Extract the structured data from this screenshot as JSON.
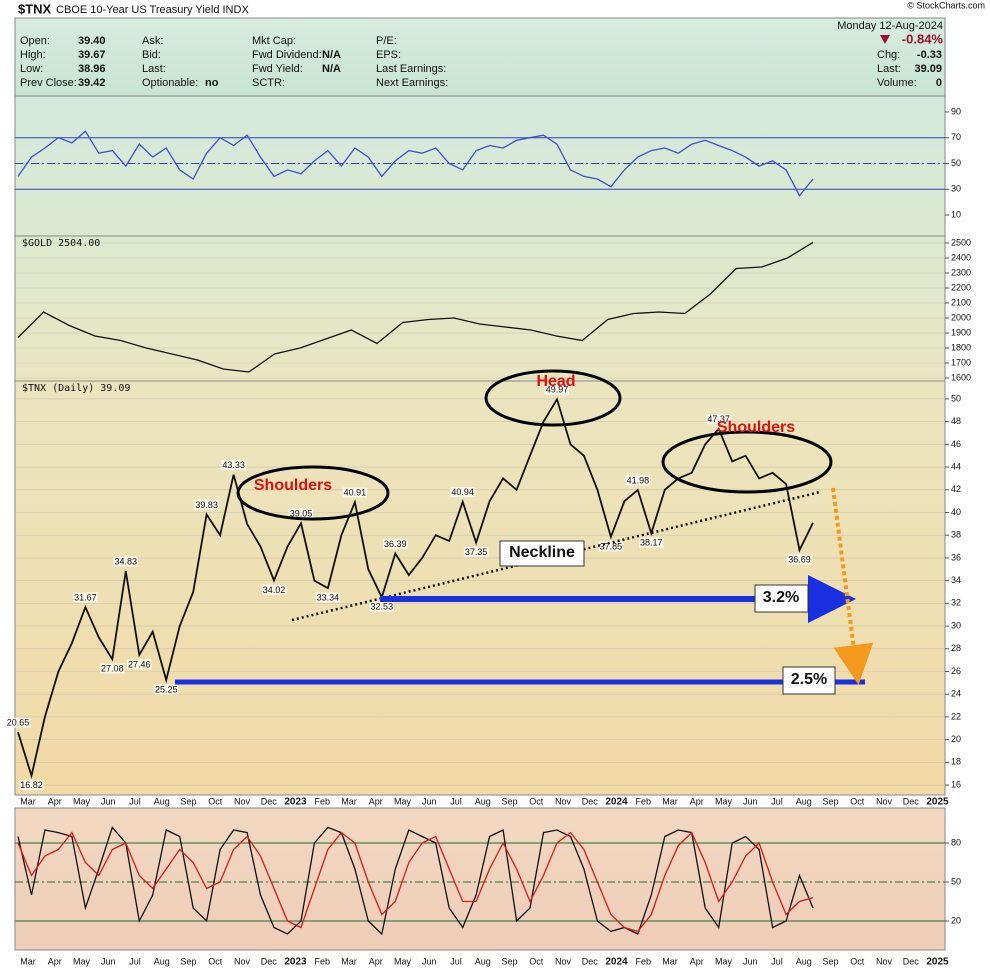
{
  "header": {
    "symbol": "$TNX",
    "description": "CBOE 10-Year US Treasury Yield INDX",
    "date": "Monday 12-Aug-2024",
    "change_pct": "-0.84%",
    "credit": "© StockCharts.com",
    "fields": [
      [
        {
          "label": "Open:",
          "value": "39.40"
        },
        {
          "label": "High:",
          "value": "39.67"
        },
        {
          "label": "Low:",
          "value": "38.96"
        },
        {
          "label": "Prev Close:",
          "value": "39.42"
        }
      ],
      [
        {
          "label": "Ask:"
        },
        {
          "label": "Bid:"
        },
        {
          "label": "Last:"
        },
        {
          "label": "Optionable:",
          "value": "no"
        }
      ],
      [
        {
          "label": "Mkt Cap:"
        },
        {
          "label": "Fwd Dividend:",
          "value": "N/A"
        },
        {
          "label": "Fwd Yield:",
          "value": "N/A"
        },
        {
          "label": "SCTR:"
        }
      ],
      [
        {
          "label": "P/E:"
        },
        {
          "label": "EPS:"
        },
        {
          "label": "Last Earnings:"
        },
        {
          "label": "Next Earnings:"
        }
      ],
      [
        {
          "label": "Chg:",
          "value": "-0.33"
        },
        {
          "label": "Last:",
          "value": "39.09"
        },
        {
          "label": "Volume:",
          "value": "0"
        }
      ]
    ]
  },
  "chart_data": [
    {
      "type": "line",
      "ylim": [
        0,
        100
      ],
      "yticks": [
        10,
        30,
        50,
        70,
        90
      ],
      "hlines": [
        30,
        50,
        70
      ],
      "hline_color": "#3040c8",
      "series": [
        {
          "color": "#3b4fd6",
          "values": [
            40,
            55,
            62,
            70,
            66,
            75,
            58,
            60,
            48,
            65,
            55,
            62,
            45,
            38,
            58,
            70,
            64,
            72,
            55,
            40,
            45,
            42,
            52,
            60,
            48,
            62,
            55,
            40,
            52,
            60,
            58,
            62,
            50,
            45,
            60,
            64,
            62,
            68,
            70,
            72,
            65,
            45,
            40,
            38,
            32,
            45,
            55,
            60,
            62,
            58,
            65,
            68,
            64,
            60,
            55,
            48,
            52,
            45,
            25,
            38
          ]
        }
      ]
    },
    {
      "type": "line",
      "ylim": [
        1580,
        2540
      ],
      "yticks": [
        1600,
        1700,
        1800,
        1900,
        2000,
        2100,
        2200,
        2300,
        2400,
        2500
      ],
      "grid": true,
      "series": [
        {
          "name": "$GOLD",
          "color": "#111111",
          "values": [
            1870,
            2040,
            1950,
            1880,
            1850,
            1800,
            1760,
            1720,
            1660,
            1640,
            1760,
            1800,
            1860,
            1920,
            1830,
            1970,
            1990,
            2000,
            1960,
            1940,
            1920,
            1880,
            1850,
            1990,
            2030,
            2040,
            2030,
            2160,
            2330,
            2340,
            2400,
            2504
          ],
          "value_labels": [
            null,
            null,
            null,
            null,
            null,
            null,
            null,
            null,
            null,
            null,
            null,
            null,
            null,
            null,
            null,
            null,
            null,
            null,
            null,
            null,
            null,
            null,
            null,
            null,
            null,
            null,
            null,
            null,
            null,
            null,
            null,
            "2504.00"
          ]
        }
      ]
    },
    {
      "type": "line",
      "ylim": [
        15,
        51
      ],
      "yticks": [
        16,
        18,
        20,
        22,
        24,
        26,
        28,
        30,
        32,
        34,
        36,
        38,
        40,
        42,
        44,
        46,
        48,
        50
      ],
      "grid": true,
      "x_labels": [
        "Mar",
        "Apr",
        "May",
        "Jun",
        "Jul",
        "Aug",
        "Sep",
        "Oct",
        "Nov",
        "Dec",
        "2023",
        "Feb",
        "Mar",
        "Apr",
        "May",
        "Jun",
        "Jul",
        "Aug",
        "Sep",
        "Oct",
        "Nov",
        "Dec",
        "2024",
        "Feb",
        "Mar",
        "Apr",
        "May",
        "Jun",
        "Jul",
        "Aug",
        "Sep",
        "Oct",
        "Nov",
        "Dec",
        "2025"
      ],
      "annotations": [
        "Head",
        "Shoulders",
        "Shoulders",
        "Neckline",
        "3.2%",
        "2.5%"
      ],
      "series": [
        {
          "name": "$TNX (Daily)",
          "color": "#111111",
          "values": [
            20.65,
            16.82,
            22,
            26,
            28.5,
            31.67,
            29,
            27.08,
            34.83,
            27.46,
            29.5,
            25.25,
            30,
            33,
            39.83,
            38,
            43.33,
            39,
            37,
            34.02,
            37,
            39.05,
            34,
            33.34,
            38,
            40.91,
            35,
            32.53,
            36.39,
            34.5,
            36,
            38,
            37.5,
            40.94,
            37.35,
            41,
            43,
            42,
            45,
            48,
            49.97,
            46,
            45,
            42,
            37.85,
            41,
            41.98,
            38.17,
            42,
            43,
            43.5,
            46,
            47.37,
            44.5,
            45,
            43,
            43.5,
            42.5,
            36.69,
            39.09
          ],
          "value_labels": [
            "20.65",
            "16.82",
            null,
            null,
            null,
            "31.67",
            null,
            "27.08",
            "34.83",
            "27.46",
            null,
            "25.25",
            null,
            null,
            "39.83",
            null,
            "43.33",
            null,
            null,
            "34.02",
            null,
            "39.05",
            null,
            "33.34",
            null,
            "40.91",
            null,
            "32.53",
            "36.39",
            null,
            null,
            null,
            null,
            "40.94",
            "37.35",
            null,
            null,
            null,
            null,
            null,
            "49.97",
            null,
            null,
            null,
            "37.85",
            null,
            "41.98",
            "38.17",
            null,
            null,
            null,
            null,
            "47.37",
            null,
            null,
            null,
            null,
            null,
            "36.69",
            null
          ]
        }
      ]
    },
    {
      "type": "line",
      "ylim": [
        0,
        100
      ],
      "yticks": [
        20,
        50,
        80
      ],
      "hlines": [
        20,
        50,
        80
      ],
      "hline_color": "#1f6b2a",
      "x_labels": [
        "Mar",
        "Apr",
        "May",
        "Jun",
        "Jul",
        "Aug",
        "Sep",
        "Oct",
        "Nov",
        "Dec",
        "2023",
        "Feb",
        "Mar",
        "Apr",
        "May",
        "Jun",
        "Jul",
        "Aug",
        "Sep",
        "Oct",
        "Nov",
        "Dec",
        "2024",
        "Feb",
        "Mar",
        "Apr",
        "May",
        "Jun",
        "Jul",
        "Aug",
        "Sep",
        "Oct",
        "Nov",
        "Dec",
        "2025"
      ],
      "series": [
        {
          "color": "#111111",
          "values": [
            85,
            40,
            90,
            88,
            85,
            30,
            60,
            92,
            80,
            20,
            40,
            90,
            85,
            30,
            20,
            75,
            90,
            88,
            40,
            15,
            10,
            20,
            80,
            92,
            88,
            60,
            20,
            10,
            60,
            90,
            85,
            80,
            30,
            15,
            40,
            85,
            90,
            20,
            30,
            88,
            90,
            85,
            60,
            20,
            12,
            15,
            10,
            40,
            85,
            90,
            88,
            30,
            15,
            80,
            85,
            75,
            15,
            20,
            55,
            30
          ]
        },
        {
          "color": "#e01818",
          "values": [
            80,
            55,
            70,
            75,
            88,
            65,
            55,
            75,
            80,
            55,
            45,
            60,
            75,
            65,
            45,
            50,
            75,
            85,
            70,
            45,
            20,
            15,
            45,
            75,
            88,
            80,
            50,
            25,
            35,
            65,
            80,
            85,
            60,
            35,
            35,
            60,
            80,
            60,
            35,
            55,
            80,
            88,
            75,
            50,
            25,
            15,
            12,
            25,
            55,
            78,
            88,
            65,
            35,
            50,
            70,
            80,
            50,
            25,
            35,
            38
          ]
        }
      ]
    }
  ]
}
